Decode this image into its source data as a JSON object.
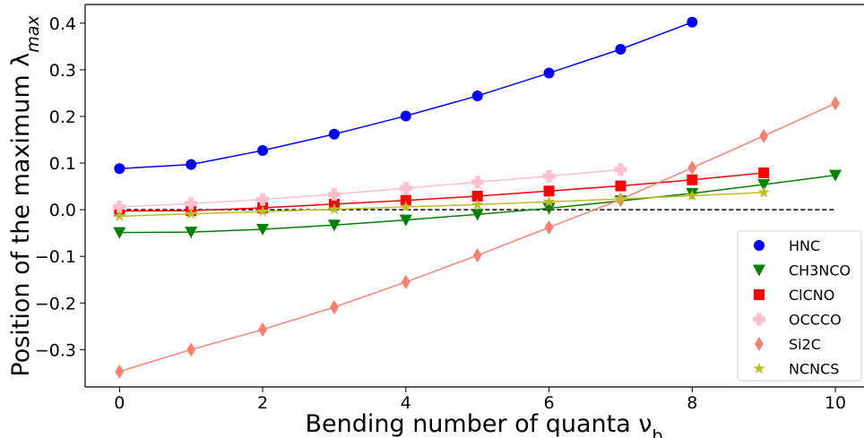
{
  "chart_data": {
    "type": "line",
    "xlabel": "Bending number of quanta ν",
    "xlabel_sub": "b",
    "ylabel": "Position of the maximum λ",
    "ylabel_sub": "max",
    "xlim": [
      -0.48,
      10.4
    ],
    "ylim": [
      -0.38,
      0.44
    ],
    "xticks": [
      "0",
      "2",
      "4",
      "6",
      "8",
      "10"
    ],
    "yticks": [
      "−0.3",
      "−0.2",
      "−0.1",
      "0.0",
      "0.1",
      "0.2",
      "0.3",
      "0.4"
    ],
    "reference_line": {
      "y": 0.0,
      "x_from": 0,
      "x_to": 10,
      "style": "dashed",
      "color": "#000000"
    },
    "legend_position": "lower-right",
    "series": [
      {
        "name": "HNC",
        "color": "#0000ff",
        "marker": "circle",
        "x": [
          0,
          1,
          2,
          3,
          4,
          5,
          6,
          7,
          8
        ],
        "y": [
          0.088,
          0.097,
          0.127,
          0.162,
          0.201,
          0.244,
          0.293,
          0.344,
          0.402
        ]
      },
      {
        "name": "CH3NCO",
        "color": "#008000",
        "marker": "triangle-down",
        "x": [
          0,
          1,
          2,
          3,
          4,
          5,
          6,
          7,
          8,
          9,
          10
        ],
        "y": [
          -0.049,
          -0.048,
          -0.042,
          -0.033,
          -0.022,
          -0.01,
          0.003,
          0.019,
          0.035,
          0.054,
          0.074
        ]
      },
      {
        "name": "ClCNO",
        "color": "#ff0000",
        "marker": "square",
        "x": [
          0,
          1,
          2,
          3,
          4,
          5,
          6,
          7,
          8,
          9
        ],
        "y": [
          -0.003,
          -0.002,
          0.004,
          0.012,
          0.02,
          0.029,
          0.04,
          0.051,
          0.064,
          0.079
        ]
      },
      {
        "name": "OCCCO",
        "color": "#ffc0cb",
        "marker": "plus",
        "x": [
          0,
          1,
          2,
          3,
          4,
          5,
          6,
          7
        ],
        "y": [
          0.006,
          0.013,
          0.022,
          0.033,
          0.046,
          0.059,
          0.072,
          0.086
        ]
      },
      {
        "name": "Si2C",
        "color": "#fa8072",
        "marker": "thin-diamond",
        "x": [
          0,
          1,
          2,
          3,
          4,
          5,
          6,
          7,
          8,
          9,
          10
        ],
        "y": [
          -0.347,
          -0.3,
          -0.257,
          -0.209,
          -0.155,
          -0.098,
          -0.038,
          0.022,
          0.09,
          0.158,
          0.228
        ]
      },
      {
        "name": "NCNCS",
        "color": "#bcbd22",
        "marker": "star",
        "x": [
          0,
          1,
          2,
          3,
          4,
          5,
          6,
          7,
          8,
          9
        ],
        "y": [
          -0.014,
          -0.009,
          -0.004,
          0.001,
          0.006,
          0.011,
          0.017,
          0.023,
          0.03,
          0.037
        ]
      }
    ]
  }
}
